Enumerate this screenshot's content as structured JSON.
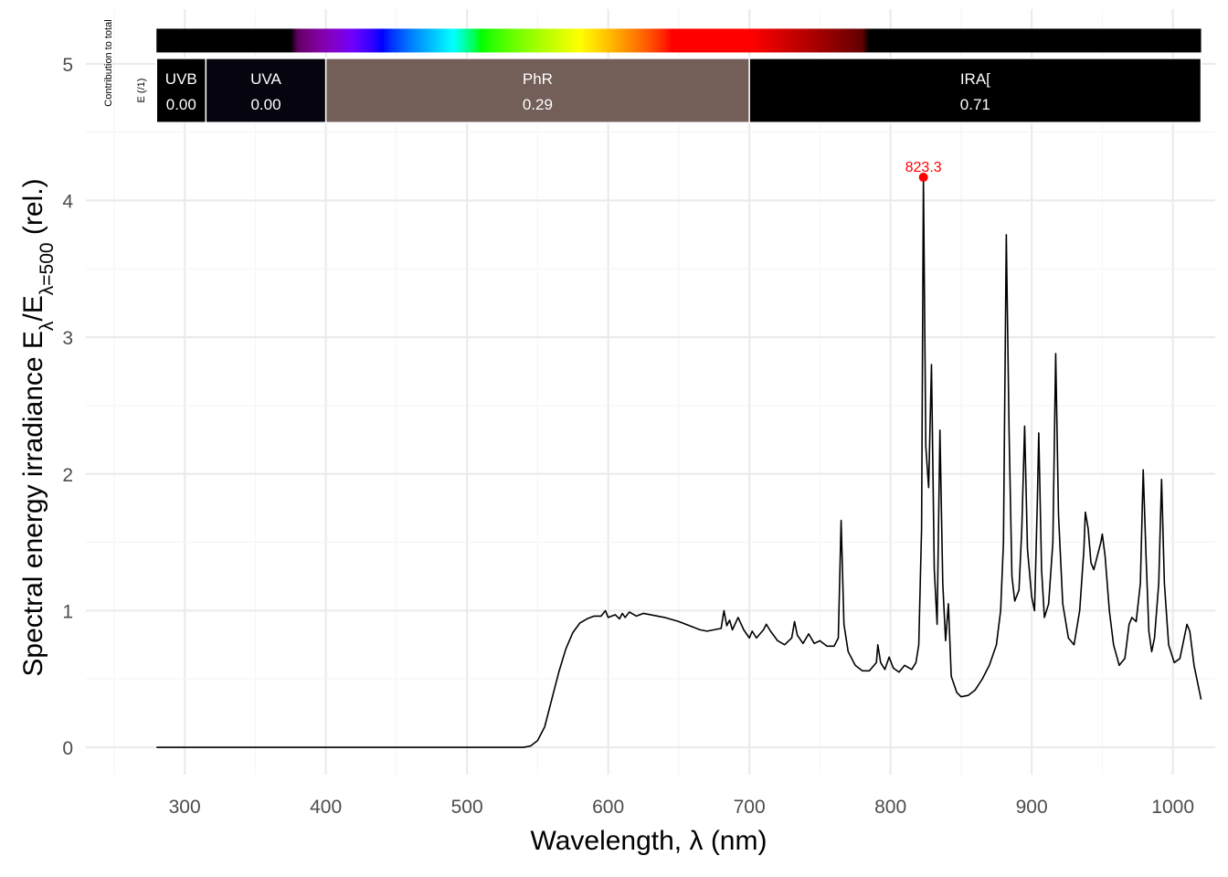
{
  "chart_data": {
    "type": "line",
    "title": "",
    "xlabel": "Wavelength, λ (nm)",
    "ylabel_parts": {
      "main": "Spectral  energy  irradiance  E",
      "sub1": "λ",
      "slash": "/E",
      "sub2": "λ=500",
      "tail": "  (rel.)"
    },
    "xlim": [
      230,
      1030
    ],
    "ylim": [
      -0.2,
      5.4
    ],
    "x_ticks": [
      300,
      400,
      500,
      600,
      700,
      800,
      900,
      1000
    ],
    "y_ticks": [
      0,
      1,
      2,
      3,
      4,
      5
    ],
    "grid": true,
    "series": [
      {
        "color": "#000000",
        "points": [
          [
            280,
            0
          ],
          [
            400,
            0
          ],
          [
            500,
            0
          ],
          [
            540,
            0
          ],
          [
            545,
            0.01
          ],
          [
            550,
            0.05
          ],
          [
            555,
            0.15
          ],
          [
            560,
            0.35
          ],
          [
            565,
            0.55
          ],
          [
            570,
            0.72
          ],
          [
            575,
            0.84
          ],
          [
            580,
            0.91
          ],
          [
            585,
            0.94
          ],
          [
            590,
            0.96
          ],
          [
            595,
            0.96
          ],
          [
            598,
            1.0
          ],
          [
            600,
            0.95
          ],
          [
            605,
            0.97
          ],
          [
            608,
            0.94
          ],
          [
            610,
            0.98
          ],
          [
            612,
            0.95
          ],
          [
            615,
            0.99
          ],
          [
            620,
            0.96
          ],
          [
            625,
            0.98
          ],
          [
            630,
            0.97
          ],
          [
            640,
            0.95
          ],
          [
            650,
            0.92
          ],
          [
            655,
            0.9
          ],
          [
            660,
            0.88
          ],
          [
            665,
            0.86
          ],
          [
            670,
            0.85
          ],
          [
            675,
            0.86
          ],
          [
            680,
            0.87
          ],
          [
            682,
            1.0
          ],
          [
            684,
            0.89
          ],
          [
            686,
            0.93
          ],
          [
            688,
            0.86
          ],
          [
            692,
            0.95
          ],
          [
            696,
            0.86
          ],
          [
            700,
            0.8
          ],
          [
            702,
            0.85
          ],
          [
            705,
            0.8
          ],
          [
            710,
            0.86
          ],
          [
            712,
            0.9
          ],
          [
            715,
            0.85
          ],
          [
            720,
            0.78
          ],
          [
            725,
            0.75
          ],
          [
            730,
            0.8
          ],
          [
            732,
            0.92
          ],
          [
            734,
            0.82
          ],
          [
            738,
            0.76
          ],
          [
            742,
            0.83
          ],
          [
            746,
            0.76
          ],
          [
            750,
            0.78
          ],
          [
            755,
            0.74
          ],
          [
            760,
            0.74
          ],
          [
            763,
            0.8
          ],
          [
            765,
            1.66
          ],
          [
            767,
            0.9
          ],
          [
            770,
            0.7
          ],
          [
            775,
            0.6
          ],
          [
            780,
            0.56
          ],
          [
            785,
            0.56
          ],
          [
            790,
            0.62
          ],
          [
            791,
            0.75
          ],
          [
            793,
            0.62
          ],
          [
            796,
            0.57
          ],
          [
            799,
            0.66
          ],
          [
            802,
            0.58
          ],
          [
            806,
            0.55
          ],
          [
            810,
            0.6
          ],
          [
            815,
            0.57
          ],
          [
            818,
            0.62
          ],
          [
            820,
            0.75
          ],
          [
            822,
            1.6
          ],
          [
            823.3,
            4.17
          ],
          [
            825,
            2.2
          ],
          [
            827,
            1.9
          ],
          [
            829,
            2.8
          ],
          [
            831,
            1.3
          ],
          [
            833,
            0.9
          ],
          [
            835,
            2.32
          ],
          [
            837,
            1.2
          ],
          [
            839,
            0.78
          ],
          [
            841,
            1.05
          ],
          [
            843,
            0.52
          ],
          [
            847,
            0.4
          ],
          [
            850,
            0.37
          ],
          [
            855,
            0.38
          ],
          [
            860,
            0.42
          ],
          [
            865,
            0.5
          ],
          [
            870,
            0.6
          ],
          [
            875,
            0.75
          ],
          [
            878,
            1.0
          ],
          [
            880,
            1.5
          ],
          [
            882,
            3.75
          ],
          [
            884,
            2.3
          ],
          [
            886,
            1.25
          ],
          [
            888,
            1.07
          ],
          [
            891,
            1.15
          ],
          [
            893,
            1.6
          ],
          [
            895,
            2.35
          ],
          [
            897,
            1.45
          ],
          [
            900,
            1.1
          ],
          [
            902,
            1.0
          ],
          [
            904,
            1.8
          ],
          [
            905,
            2.3
          ],
          [
            907,
            1.3
          ],
          [
            909,
            0.95
          ],
          [
            912,
            1.05
          ],
          [
            915,
            1.5
          ],
          [
            917,
            2.88
          ],
          [
            919,
            1.7
          ],
          [
            922,
            1.05
          ],
          [
            926,
            0.8
          ],
          [
            930,
            0.75
          ],
          [
            934,
            1.0
          ],
          [
            937,
            1.45
          ],
          [
            938,
            1.72
          ],
          [
            940,
            1.6
          ],
          [
            942,
            1.35
          ],
          [
            944,
            1.3
          ],
          [
            946,
            1.38
          ],
          [
            949,
            1.5
          ],
          [
            950,
            1.56
          ],
          [
            952,
            1.4
          ],
          [
            955,
            1.0
          ],
          [
            958,
            0.75
          ],
          [
            962,
            0.6
          ],
          [
            966,
            0.65
          ],
          [
            969,
            0.9
          ],
          [
            971,
            0.95
          ],
          [
            974,
            0.92
          ],
          [
            977,
            1.2
          ],
          [
            979,
            2.03
          ],
          [
            981,
            1.4
          ],
          [
            983,
            0.85
          ],
          [
            985,
            0.7
          ],
          [
            987,
            0.8
          ],
          [
            990,
            1.2
          ],
          [
            992,
            1.96
          ],
          [
            994,
            1.2
          ],
          [
            997,
            0.75
          ],
          [
            1001,
            0.62
          ],
          [
            1005,
            0.65
          ],
          [
            1007,
            0.75
          ],
          [
            1010,
            0.9
          ],
          [
            1012,
            0.85
          ],
          [
            1015,
            0.6
          ],
          [
            1018,
            0.45
          ],
          [
            1020,
            0.35
          ]
        ]
      }
    ],
    "peak": {
      "x": 823.3,
      "y": 4.17,
      "label": "823.3",
      "color": "#ff0000"
    },
    "color_bar": {
      "from": 280,
      "to": 1020,
      "y_center": 5.17
    },
    "band_label": {
      "line1": "Contribution  to  total",
      "line2": "E  (/1)"
    },
    "bands": [
      {
        "name": "UVB",
        "value": "0.00",
        "from": 280,
        "to": 315,
        "color": "#000000"
      },
      {
        "name": "UVA",
        "value": "0.00",
        "from": 315,
        "to": 400,
        "color": "#06050f"
      },
      {
        "name": "PhR",
        "value": "0.29",
        "from": 400,
        "to": 700,
        "color": "#735e58"
      },
      {
        "name": "IRA[",
        "value": "0.71",
        "from": 700,
        "to": 1020,
        "color": "#000000"
      }
    ],
    "band_y_range": [
      4.57,
      5.04
    ]
  }
}
